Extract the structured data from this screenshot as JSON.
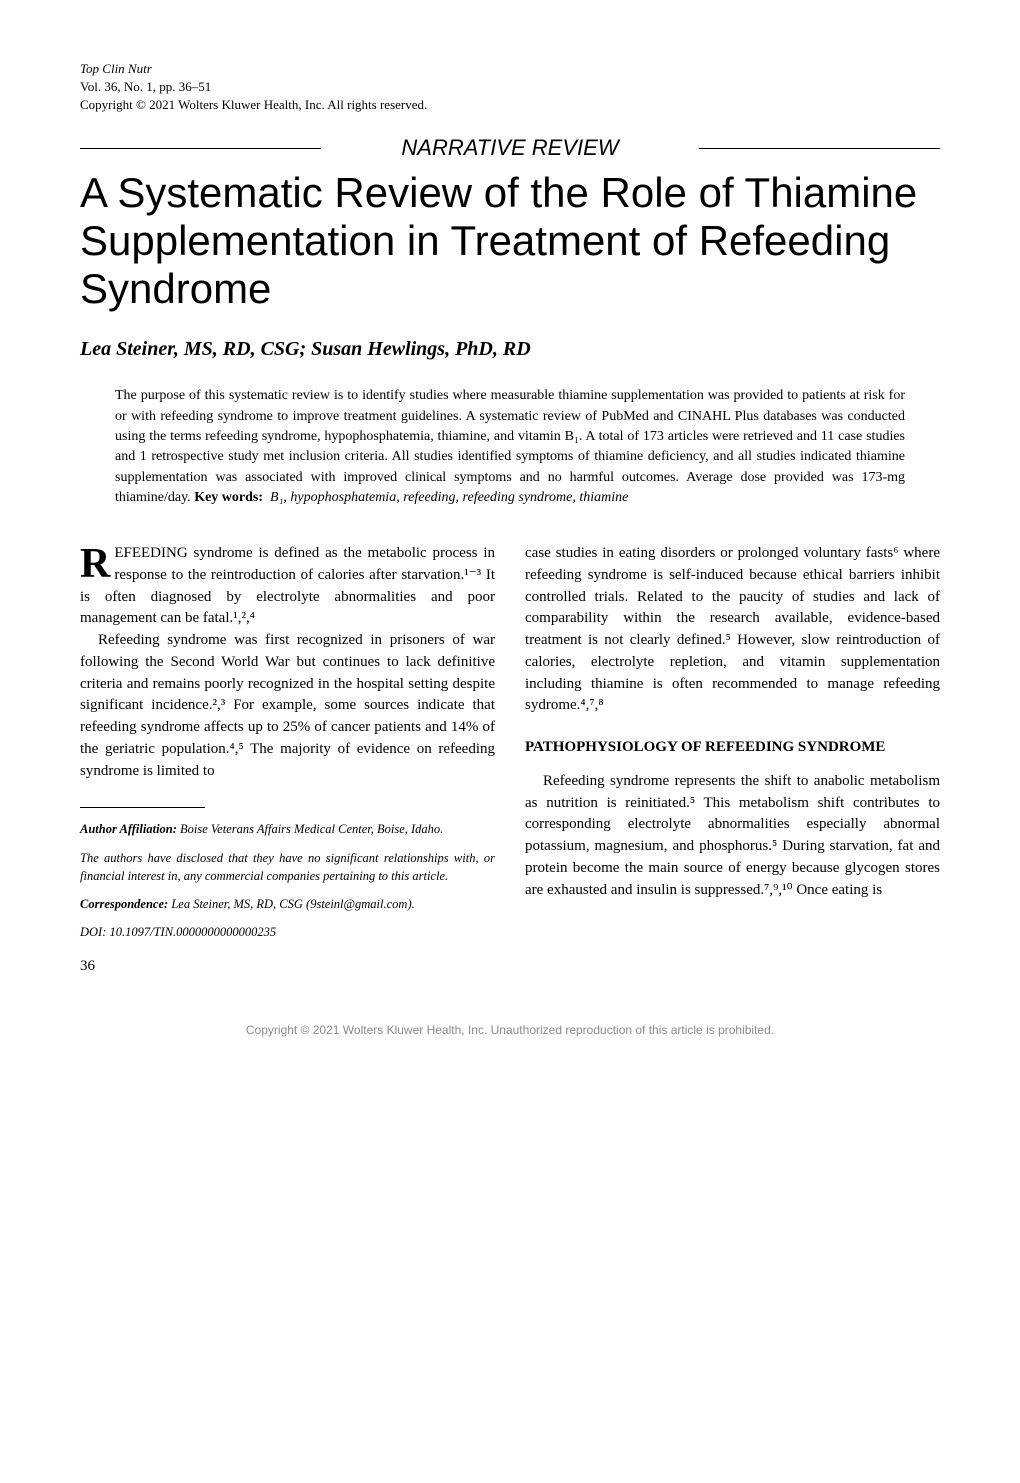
{
  "header": {
    "journal": "Top Clin Nutr",
    "volume_line": "Vol. 36, No. 1, pp. 36–51",
    "copyright_line": "Copyright © 2021 Wolters Kluwer Health, Inc. All rights reserved."
  },
  "section_label": "NARRATIVE REVIEW",
  "title": "A Systematic Review of the Role of Thiamine Supplementation in Treatment of Refeeding Syndrome",
  "authors": "Lea Steiner, MS, RD, CSG; Susan Hewlings, PhD, RD",
  "abstract": {
    "body": "The purpose of this systematic review is to identify studies where measurable thiamine supplementation was provided to patients at risk for or with refeeding syndrome to improve treatment guidelines. A systematic review of PubMed and CINAHL Plus databases was conducted using the terms refeeding syndrome, hypophosphatemia, thiamine, and vitamin B₁. A total of 173 articles were retrieved and 11 case studies and 1 retrospective study met inclusion criteria. All studies identified symptoms of thiamine deficiency, and all studies indicated thiamine supplementation was associated with improved clinical symptoms and no harmful outcomes. Average dose provided was 173-mg thiamine/day.",
    "keywords_label": "Key words:",
    "keywords_terms": "B₁, hypophosphatemia, refeeding, refeeding syndrome, thiamine"
  },
  "body": {
    "left": {
      "dropcap": "R",
      "p1_rest": "EFEEDING syndrome is defined as the metabolic process in response to the reintroduction of calories after starvation.¹⁻³ It is often diagnosed by electrolyte abnormalities and poor management can be fatal.¹,²,⁴",
      "p2": "Refeeding syndrome was first recognized in prisoners of war following the Second World War but continues to lack definitive criteria and remains poorly recognized in the hospital setting despite significant incidence.²,³ For example, some sources indicate that refeeding syndrome affects up to 25% of cancer patients and 14% of the geriatric population.⁴,⁵ The majority of evidence on refeeding syndrome is limited to"
    },
    "right": {
      "p1": "case studies in eating disorders or prolonged voluntary fasts⁶ where refeeding syndrome is self-induced because ethical barriers inhibit controlled trials. Related to the paucity of studies and lack of comparability within the research available, evidence-based treatment is not clearly defined.⁵ However, slow reintroduction of calories, electrolyte repletion, and vitamin supplementation including thiamine is often recommended to manage refeeding sydrome.⁴,⁷,⁸",
      "heading": "PATHOPHYSIOLOGY OF REFEEDING SYNDROME",
      "p2": "Refeeding syndrome represents the shift to anabolic metabolism as nutrition is reinitiated.⁵ This metabolism shift contributes to corresponding electrolyte abnormalities especially abnormal potassium, magnesium, and phosphorus.⁵ During starvation, fat and protein become the main source of energy because glycogen stores are exhausted and insulin is suppressed.⁷,⁹,¹⁰ Once eating is"
    }
  },
  "footnotes": {
    "affiliation_label": "Author Affiliation:",
    "affiliation_text": " Boise Veterans Affairs Medical Center, Boise, Idaho.",
    "disclosure": "The authors have disclosed that they have no significant relationships with, or financial interest in, any commercial companies pertaining to this article.",
    "correspondence_label": "Correspondence:",
    "correspondence_text": " Lea Steiner, MS, RD, CSG (9steinl@gmail.com).",
    "doi": "DOI: 10.1097/TIN.0000000000000235"
  },
  "page_number": "36",
  "footer_copyright": "Copyright © 2021 Wolters Kluwer Health, Inc. Unauthorized reproduction of this article is prohibited."
}
